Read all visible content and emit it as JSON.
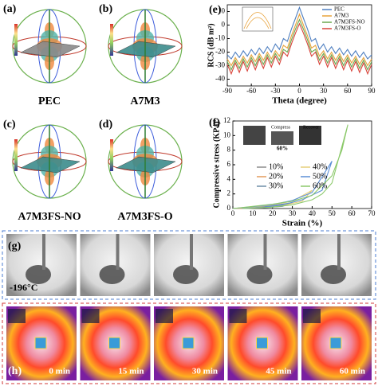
{
  "panels": {
    "a": {
      "letter": "(a)",
      "label": "PEC"
    },
    "b": {
      "letter": "(b)",
      "label": "A7M3"
    },
    "c": {
      "letter": "(c)",
      "label": "A7M3FS-NO"
    },
    "d": {
      "letter": "(d)",
      "label": "A7M3FS-O"
    },
    "e": {
      "letter": "(e)"
    },
    "f": {
      "letter": "(f)",
      "inset": [
        "Compress",
        "Recover",
        "60%"
      ]
    },
    "g": {
      "letter": "(g)",
      "temperature": "-196°C"
    },
    "h": {
      "letter": "(h)",
      "times": [
        "0 min",
        "15 min",
        "30 min",
        "45 min",
        "60 min"
      ]
    }
  },
  "chart_data": [
    {
      "type": "line",
      "xlabel": "Theta (degree)",
      "ylabel": "RCS (dB m²)",
      "x": [
        -90,
        -85,
        -80,
        -75,
        -70,
        -65,
        -60,
        -55,
        -50,
        -45,
        -40,
        -35,
        -30,
        -25,
        -20,
        -15,
        -10,
        -5,
        0,
        5,
        10,
        15,
        20,
        25,
        30,
        35,
        40,
        45,
        50,
        55,
        60,
        65,
        70,
        75,
        80,
        85,
        90
      ],
      "series": [
        {
          "name": "PEC",
          "color": "#4f7fc0",
          "values": [
            -22,
            -25,
            -20,
            -24,
            -19,
            -23,
            -18,
            -22,
            -17,
            -21,
            -16,
            -20,
            -14,
            -18,
            -10,
            -12,
            -3,
            5,
            13,
            5,
            -3,
            -12,
            -10,
            -18,
            -14,
            -20,
            -16,
            -21,
            -17,
            -22,
            -18,
            -23,
            -19,
            -24,
            -20,
            -25,
            -22
          ]
        },
        {
          "name": "A7M3",
          "color": "#e8a23a",
          "values": [
            -25,
            -30,
            -24,
            -29,
            -23,
            -28,
            -22,
            -27,
            -21,
            -26,
            -20,
            -25,
            -19,
            -23,
            -15,
            -17,
            -8,
            0,
            8,
            0,
            -8,
            -17,
            -15,
            -23,
            -19,
            -25,
            -20,
            -26,
            -21,
            -27,
            -22,
            -28,
            -23,
            -29,
            -24,
            -30,
            -25
          ]
        },
        {
          "name": "A7M3FS-NO",
          "color": "#6aa84f",
          "values": [
            -27,
            -33,
            -26,
            -32,
            -25,
            -31,
            -24,
            -30,
            -23,
            -29,
            -22,
            -28,
            -21,
            -26,
            -18,
            -20,
            -11,
            -3,
            4,
            -3,
            -11,
            -20,
            -18,
            -26,
            -21,
            -28,
            -22,
            -29,
            -23,
            -30,
            -24,
            -31,
            -25,
            -32,
            -26,
            -33,
            -27
          ]
        },
        {
          "name": "A7M3FS-O",
          "color": "#d9433a",
          "values": [
            -29,
            -36,
            -28,
            -35,
            -27,
            -34,
            -26,
            -33,
            -25,
            -32,
            -24,
            -31,
            -23,
            -29,
            -20,
            -23,
            -14,
            -6,
            1,
            -6,
            -14,
            -23,
            -20,
            -29,
            -23,
            -31,
            -24,
            -32,
            -25,
            -33,
            -26,
            -34,
            -27,
            -35,
            -28,
            -36,
            -29
          ]
        }
      ],
      "xlim": [
        -90,
        90
      ],
      "xticks": [
        -90,
        -60,
        -30,
        0,
        30,
        60,
        90
      ],
      "ylim": [
        -45,
        15
      ],
      "yticks": [
        -40,
        -30,
        -20,
        -10,
        0,
        10
      ],
      "legend": "upper right"
    },
    {
      "type": "line",
      "xlabel": "Strain (%)",
      "ylabel": "Compressive stress (KPa)",
      "series": [
        {
          "name": "10%",
          "color": "#8c8c8c",
          "x": [
            0,
            5,
            10,
            7,
            3,
            0
          ],
          "values": [
            0,
            0.05,
            0.15,
            0.05,
            0.01,
            0
          ]
        },
        {
          "name": "20%",
          "color": "#e39a5a",
          "x": [
            0,
            10,
            20,
            15,
            8,
            2
          ],
          "values": [
            0,
            0.12,
            0.35,
            0.1,
            0.03,
            0
          ]
        },
        {
          "name": "30%",
          "color": "#6f8fa8",
          "x": [
            0,
            10,
            20,
            30,
            25,
            15,
            5
          ],
          "values": [
            0,
            0.15,
            0.4,
            0.8,
            0.3,
            0.1,
            0
          ]
        },
        {
          "name": "40%",
          "color": "#e6cf7a",
          "x": [
            0,
            10,
            20,
            30,
            40,
            35,
            25,
            15,
            5
          ],
          "values": [
            0,
            0.2,
            0.5,
            1.0,
            2.5,
            1.0,
            0.4,
            0.15,
            0
          ]
        },
        {
          "name": "50%",
          "color": "#5b8fd6",
          "x": [
            0,
            10,
            20,
            30,
            40,
            50,
            45,
            35,
            25,
            15,
            5
          ],
          "values": [
            0,
            0.25,
            0.55,
            1.1,
            2.2,
            6.5,
            2.5,
            1.2,
            0.5,
            0.15,
            0
          ]
        },
        {
          "name": "60%",
          "color": "#8cc96b",
          "x": [
            0,
            10,
            20,
            30,
            40,
            50,
            55,
            58,
            50,
            45,
            40,
            30,
            20,
            10,
            5
          ],
          "values": [
            0,
            0.3,
            0.6,
            1.0,
            1.8,
            4.5,
            8,
            11.5,
            3.5,
            2,
            1.2,
            0.5,
            0.2,
            0.05,
            0
          ]
        }
      ],
      "xlim": [
        0,
        70
      ],
      "xticks": [
        0,
        10,
        20,
        30,
        40,
        50,
        60,
        70
      ],
      "ylim": [
        0,
        12
      ],
      "yticks": [
        0,
        2,
        4,
        6,
        8,
        10,
        12
      ],
      "legend": "center"
    }
  ]
}
